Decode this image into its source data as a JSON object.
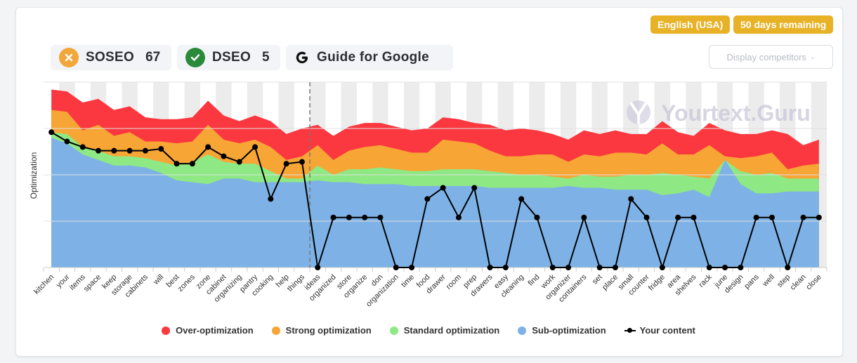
{
  "header": {
    "language_badge": "English (USA)",
    "days_badge": "50 days remaining",
    "soseo": {
      "label": "SOSEO",
      "value": "67",
      "color": "#f3a73a"
    },
    "dseo": {
      "label": "DSEO",
      "value": "5",
      "color": "#2a8a3b"
    },
    "guide": {
      "label": "Guide for Google",
      "icon": "google-g-icon"
    },
    "display_competitors": "Display competitors",
    "menu_icon": "hamburger-menu-icon"
  },
  "watermark": "Yourtext.Guru",
  "chart_data": {
    "type": "area",
    "ylabel": "Optimization",
    "xlabel": "",
    "categories": [
      "kitchen",
      "your",
      "items",
      "space",
      "keep",
      "storage",
      "cabinets",
      "will",
      "best",
      "zones",
      "zone",
      "cabinet",
      "organizing",
      "pantry",
      "cooking",
      "help",
      "things",
      "ideas",
      "organized",
      "store",
      "organize",
      "don",
      "organization",
      "time",
      "food",
      "drawer",
      "room",
      "prep",
      "drawers",
      "easy",
      "cleaning",
      "find",
      "work",
      "organizer",
      "containers",
      "set",
      "place",
      "small",
      "counter",
      "fridge",
      "area",
      "shelves",
      "rack",
      "june",
      "design",
      "pans",
      "well",
      "step",
      "clean",
      "close"
    ],
    "ylim": [
      0,
      100
    ],
    "divider_after_index": 16,
    "series": [
      {
        "name": "Sub-optimization",
        "color": "#7eb2e6",
        "values": [
          70,
          67,
          61,
          58,
          55,
          55,
          54,
          51,
          47,
          46,
          45,
          48,
          48,
          46,
          46,
          46,
          46,
          47,
          46,
          46,
          45,
          45,
          45,
          44,
          44,
          44,
          44,
          44,
          43,
          43,
          43,
          43,
          43,
          44,
          43,
          43,
          42,
          42,
          42,
          39,
          40,
          42,
          38,
          58,
          45,
          40,
          40,
          41,
          41,
          41
        ]
      },
      {
        "name": "Standard optimization",
        "color": "#8ee884",
        "values": [
          73,
          72,
          65,
          63,
          60,
          60,
          59,
          57,
          55,
          57,
          61,
          57,
          56,
          56,
          52,
          48,
          48,
          55,
          50,
          53,
          53,
          54,
          53,
          52,
          52,
          53,
          53,
          53,
          52,
          51,
          50,
          50,
          49,
          48,
          50,
          49,
          49,
          50,
          50,
          51,
          50,
          49,
          48,
          58,
          52,
          50,
          51,
          48,
          48,
          48
        ]
      },
      {
        "name": "Strong optimization",
        "color": "#f7a535",
        "values": [
          85,
          84,
          74,
          77,
          71,
          73,
          68,
          68,
          67,
          68,
          77,
          69,
          67,
          69,
          65,
          58,
          60,
          66,
          58,
          63,
          65,
          66,
          64,
          62,
          62,
          69,
          68,
          67,
          63,
          60,
          60,
          61,
          61,
          57,
          61,
          60,
          62,
          62,
          61,
          67,
          61,
          61,
          66,
          60,
          59,
          60,
          62,
          53,
          55,
          56
        ]
      },
      {
        "name": "Over-optimization",
        "color": "#fb383f",
        "values": [
          96,
          95,
          89,
          91,
          85,
          87,
          81,
          80,
          80,
          81,
          90,
          82,
          79,
          82,
          79,
          72,
          75,
          77,
          71,
          76,
          78,
          78,
          76,
          74,
          75,
          81,
          80,
          78,
          77,
          74,
          75,
          74,
          72,
          69,
          74,
          72,
          74,
          72,
          72,
          79,
          73,
          71,
          78,
          74,
          72,
          72,
          74,
          72,
          66,
          69
        ]
      },
      {
        "name": "Your content",
        "color": "#000000",
        "values": [
          73,
          68,
          65,
          63,
          63,
          63,
          63,
          64,
          56,
          56,
          65,
          60,
          57,
          65,
          37,
          56,
          57,
          0,
          27,
          27,
          27,
          27,
          0,
          0,
          37,
          43,
          27,
          43,
          0,
          0,
          37,
          27,
          0,
          0,
          27,
          0,
          0,
          37,
          27,
          0,
          27,
          27,
          0,
          0,
          0,
          27,
          27,
          0,
          27,
          27
        ]
      }
    ]
  },
  "legend": [
    {
      "label": "Over-optimization",
      "color": "#fb383f"
    },
    {
      "label": "Strong optimization",
      "color": "#f7a535"
    },
    {
      "label": "Standard optimization",
      "color": "#8ee884"
    },
    {
      "label": "Sub-optimization",
      "color": "#7eb2e6"
    },
    {
      "label": "Your content",
      "color": "#000000"
    }
  ]
}
